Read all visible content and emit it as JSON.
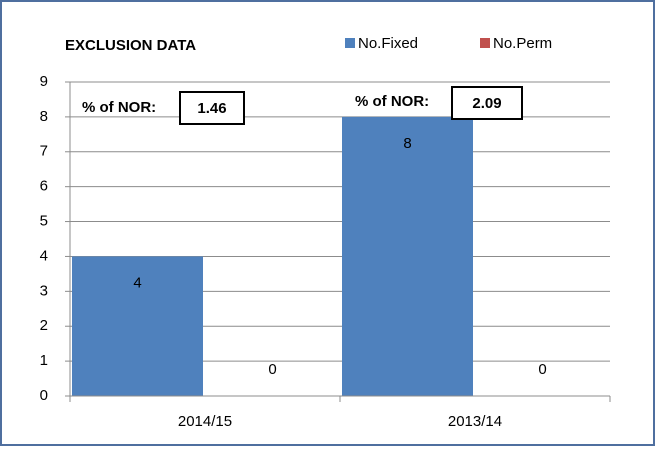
{
  "chart_data": {
    "type": "bar",
    "title": "EXCLUSION DATA",
    "categories": [
      "2014/15",
      "2013/14"
    ],
    "series": [
      {
        "name": "No.Fixed",
        "color": "#4f81bd",
        "values": [
          4,
          8
        ]
      },
      {
        "name": "No.Perm",
        "color": "#c0504d",
        "values": [
          0,
          0
        ]
      }
    ],
    "ylim": [
      0,
      9
    ],
    "yticks": [
      0,
      1,
      2,
      3,
      4,
      5,
      6,
      7,
      8,
      9
    ],
    "grid": true,
    "legend": "top",
    "annotations": [
      {
        "text": "% of NOR:",
        "value": "1.46"
      },
      {
        "text": "% of NOR:",
        "value": "2.09"
      }
    ]
  }
}
